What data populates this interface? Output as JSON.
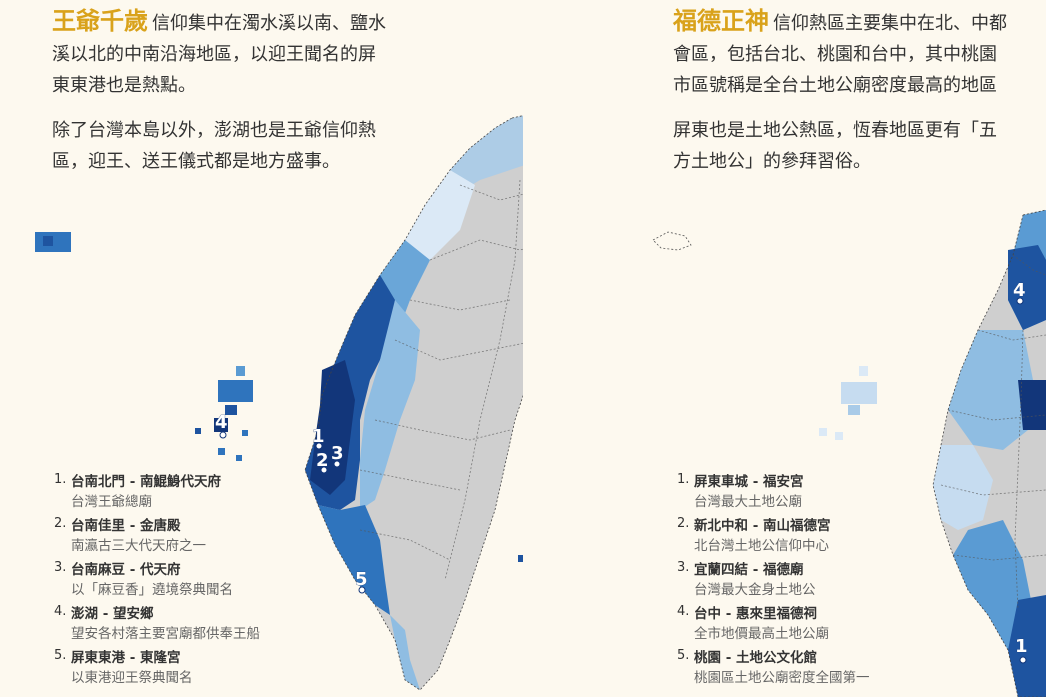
{
  "left": {
    "deity": "王爺千歲",
    "lead": "信仰集中在濁水溪以南、鹽水溪以北的中南沿海地區，以迎王聞名的屏東東港也是熱點。",
    "para2": "除了台灣本島以外，澎湖也是王爺信仰熱區，迎王、送王儀式都是地方盛事。",
    "legend": [
      {
        "num": "1.",
        "title": "台南北門 - 南鯤鯓代天府",
        "desc": "台灣王爺總廟"
      },
      {
        "num": "2.",
        "title": "台南佳里 - 金唐殿",
        "desc": "南瀛古三大代天府之一"
      },
      {
        "num": "3.",
        "title": "台南麻豆 - 代天府",
        "desc": "以「麻豆香」遶境祭典聞名"
      },
      {
        "num": "4.",
        "title": "澎湖 - 望安鄉",
        "desc": "望安各村落主要宮廟都供奉王船"
      },
      {
        "num": "5.",
        "title": "屏東東港 - 東隆宮",
        "desc": "以東港迎王祭典聞名"
      }
    ],
    "markers": [
      "1",
      "2",
      "3",
      "4",
      "5"
    ]
  },
  "right": {
    "deity": "福德正神",
    "lead": "信仰熱區主要集中在北、中都會區，包括台北、桃園和台中，其中桃園市區號稱是全台土地公廟密度最高的地區",
    "para2": "屏東也是土地公熱區，恆春地區更有「五方土地公」的參拜習俗。",
    "legend": [
      {
        "num": "1.",
        "title": "屏東車城 - 福安宮",
        "desc": "台灣最大土地公廟"
      },
      {
        "num": "2.",
        "title": "新北中和 - 南山福德宮",
        "desc": "北台灣土地公信仰中心"
      },
      {
        "num": "3.",
        "title": "宜蘭四結 - 福德廟",
        "desc": "台灣最大金身土地公"
      },
      {
        "num": "4.",
        "title": "台中 - 惠來里福德祠",
        "desc": "全市地價最高土地公廟"
      },
      {
        "num": "5.",
        "title": "桃園 - 土地公文化館",
        "desc": "桃園區土地公廟密度全國第一"
      }
    ],
    "markers": [
      "4",
      "1"
    ]
  },
  "colors": {
    "background": "#fdf9ef",
    "accent": "#d9a21b",
    "land_gray": "#cfcfcf",
    "scale": [
      "#eaf3fb",
      "#c6dcf0",
      "#8fbde2",
      "#5a9bd3",
      "#2f74bd",
      "#1e54a0",
      "#12367a"
    ]
  }
}
